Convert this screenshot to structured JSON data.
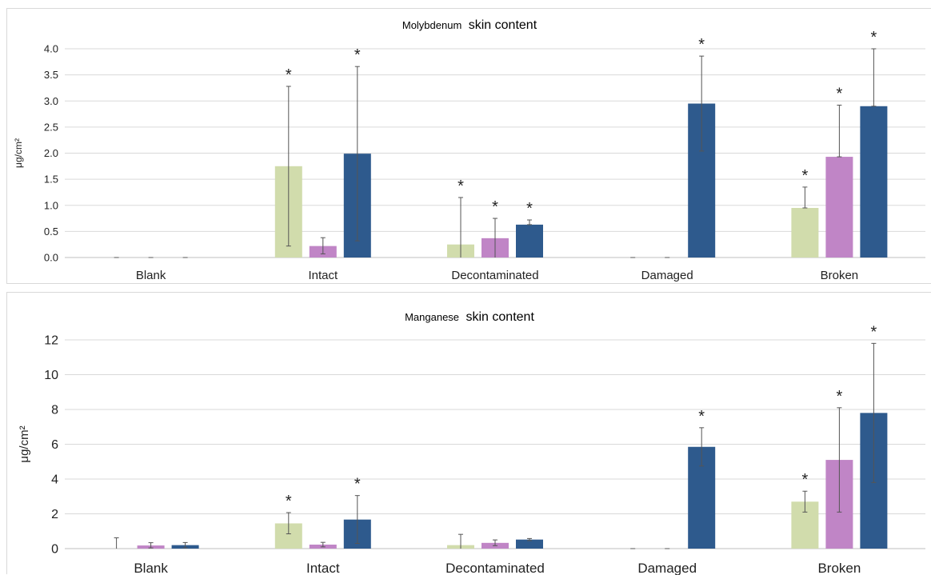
{
  "chart_data": [
    {
      "type": "bar",
      "title_prefix": "Molybdenum",
      "title_suffix": "skin content",
      "ylabel": "μg/cm²",
      "categories": [
        "Blank",
        "Intact",
        "Decontaminated",
        "Damaged",
        "Broken"
      ],
      "ylim": [
        0,
        4
      ],
      "yticks": [
        "0.0",
        "0.5",
        "1.0",
        "1.5",
        "2.0",
        "2.5",
        "3.0",
        "3.5",
        "4.0"
      ],
      "grid": true,
      "series": [
        {
          "color": "#d1dcac",
          "values": [
            0,
            1.75,
            0.25,
            0,
            0.95
          ],
          "err_hi": [
            0,
            3.28,
            1.15,
            0,
            1.35
          ],
          "err_lo": [
            0,
            0.22,
            0,
            0,
            0.95
          ]
        },
        {
          "color": "#c085c6",
          "values": [
            0,
            0.22,
            0.37,
            0,
            1.93
          ],
          "err_hi": [
            0,
            0.38,
            0.75,
            0,
            2.92
          ],
          "err_lo": [
            0,
            0.07,
            0,
            0,
            1.93
          ]
        },
        {
          "color": "#2e5a8d",
          "values": [
            0,
            1.99,
            0.63,
            2.95,
            2.9
          ],
          "err_hi": [
            0,
            3.66,
            0.72,
            3.86,
            4.0
          ],
          "err_lo": [
            0,
            0.32,
            0.63,
            2.04,
            2.9
          ]
        }
      ],
      "significance": [
        [
          false,
          true,
          true,
          false,
          true
        ],
        [
          false,
          false,
          true,
          false,
          true
        ],
        [
          false,
          true,
          true,
          true,
          true
        ]
      ]
    },
    {
      "type": "bar",
      "title_prefix": "Manganese",
      "title_suffix": "skin content",
      "ylabel": "μg/cm²",
      "categories": [
        "Blank",
        "Intact",
        "Decontaminated",
        "Damaged",
        "Broken"
      ],
      "ylim": [
        0,
        12
      ],
      "yticks": [
        "0",
        "2",
        "4",
        "6",
        "8",
        "10",
        "12"
      ],
      "grid": true,
      "series": [
        {
          "color": "#d1dcac",
          "values": [
            0,
            1.45,
            0.2,
            0,
            2.7
          ],
          "err_hi": [
            0.62,
            2.07,
            0.82,
            0,
            3.3
          ],
          "err_lo": [
            0,
            0.85,
            0,
            0,
            2.1
          ]
        },
        {
          "color": "#c085c6",
          "values": [
            0.18,
            0.23,
            0.33,
            0,
            5.1
          ],
          "err_hi": [
            0.34,
            0.36,
            0.5,
            0,
            8.1
          ],
          "err_lo": [
            0.04,
            0.1,
            0.17,
            0,
            2.1
          ]
        },
        {
          "color": "#2e5a8d",
          "values": [
            0.2,
            1.67,
            0.52,
            5.85,
            7.8
          ],
          "err_hi": [
            0.35,
            3.05,
            0.58,
            6.95,
            11.8
          ],
          "err_lo": [
            0.05,
            0.3,
            0.46,
            4.75,
            3.8
          ]
        }
      ],
      "significance": [
        [
          false,
          true,
          false,
          false,
          true
        ],
        [
          false,
          false,
          false,
          false,
          true
        ],
        [
          false,
          true,
          false,
          true,
          true
        ]
      ]
    }
  ]
}
